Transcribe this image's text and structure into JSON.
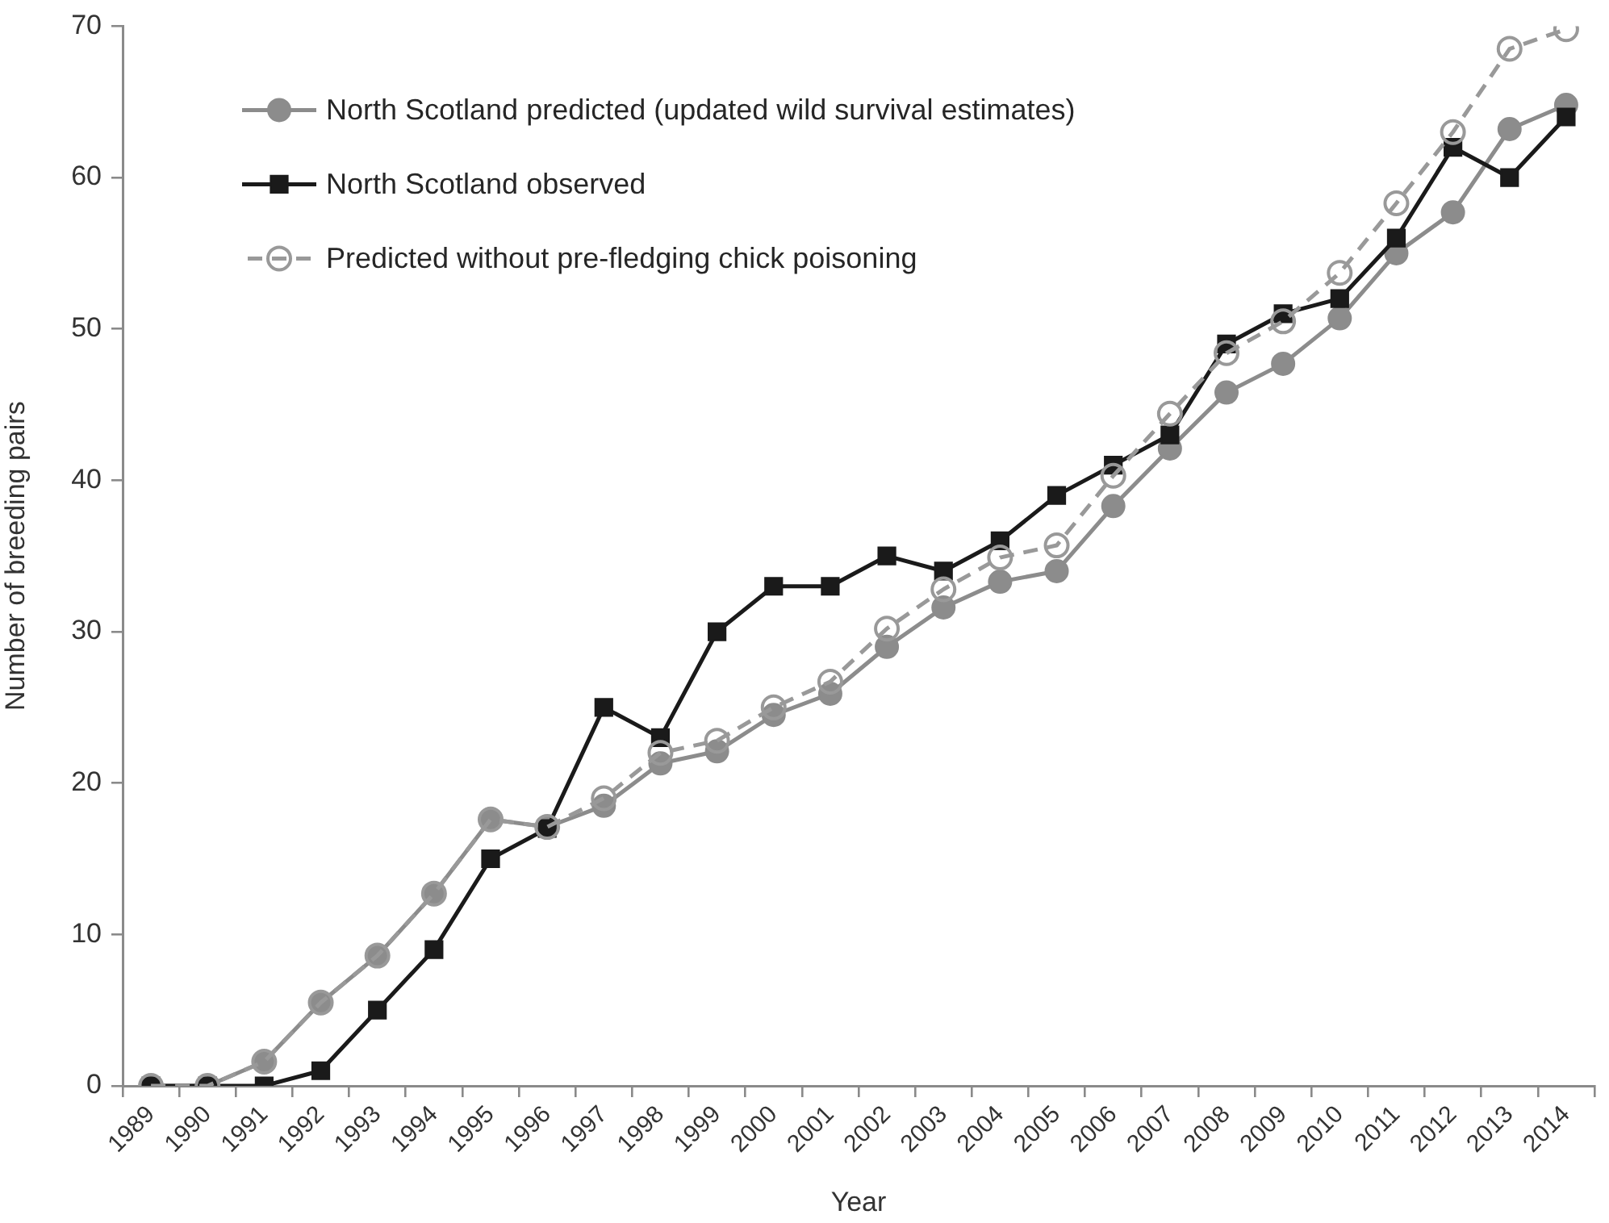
{
  "chart_data": {
    "type": "line",
    "xlabel": "Year",
    "ylabel": "Number of breeding pairs",
    "categories": [
      "1989",
      "1990",
      "1991",
      "1992",
      "1993",
      "1994",
      "1995",
      "1996",
      "1997",
      "1998",
      "1999",
      "2000",
      "2001",
      "2002",
      "2003",
      "2004",
      "2005",
      "2006",
      "2007",
      "2008",
      "2009",
      "2010",
      "2011",
      "2012",
      "2013",
      "2014"
    ],
    "series": [
      {
        "name": "North Scotland predicted (updated wild survival estimates)",
        "color": "#8c8c8c",
        "marker": "circle",
        "line_style": "solid",
        "values": [
          0,
          0,
          1.6,
          5.5,
          8.6,
          12.7,
          17.6,
          17.1,
          18.5,
          21.3,
          22.1,
          24.5,
          25.9,
          29.0,
          31.6,
          33.3,
          34.0,
          38.3,
          42.1,
          45.8,
          47.7,
          50.7,
          55.0,
          57.7,
          63.2,
          64.8
        ]
      },
      {
        "name": "North Scotland observed",
        "color": "#1a1a1a",
        "marker": "square",
        "line_style": "solid",
        "values": [
          0,
          0,
          0,
          1,
          5,
          9,
          15,
          17,
          25,
          23,
          30,
          33,
          33,
          35,
          34,
          36,
          39,
          41,
          43,
          49,
          51,
          52,
          56,
          62,
          60,
          64
        ]
      },
      {
        "name": "Predicted without pre-fledging chick poisoning",
        "color": "#999999",
        "marker": "circle",
        "line_style": "dashed",
        "values": [
          0,
          0,
          1.6,
          5.5,
          8.6,
          12.7,
          17.6,
          17.1,
          19.0,
          22.0,
          22.8,
          25.0,
          26.7,
          30.2,
          32.8,
          34.9,
          35.7,
          40.3,
          44.4,
          48.4,
          50.5,
          53.7,
          58.3,
          63.0,
          68.5,
          69.8
        ]
      }
    ],
    "ylim": [
      0,
      70
    ],
    "yticks": [
      0,
      10,
      20,
      30,
      40,
      50,
      60,
      70
    ],
    "legend": "top left"
  }
}
